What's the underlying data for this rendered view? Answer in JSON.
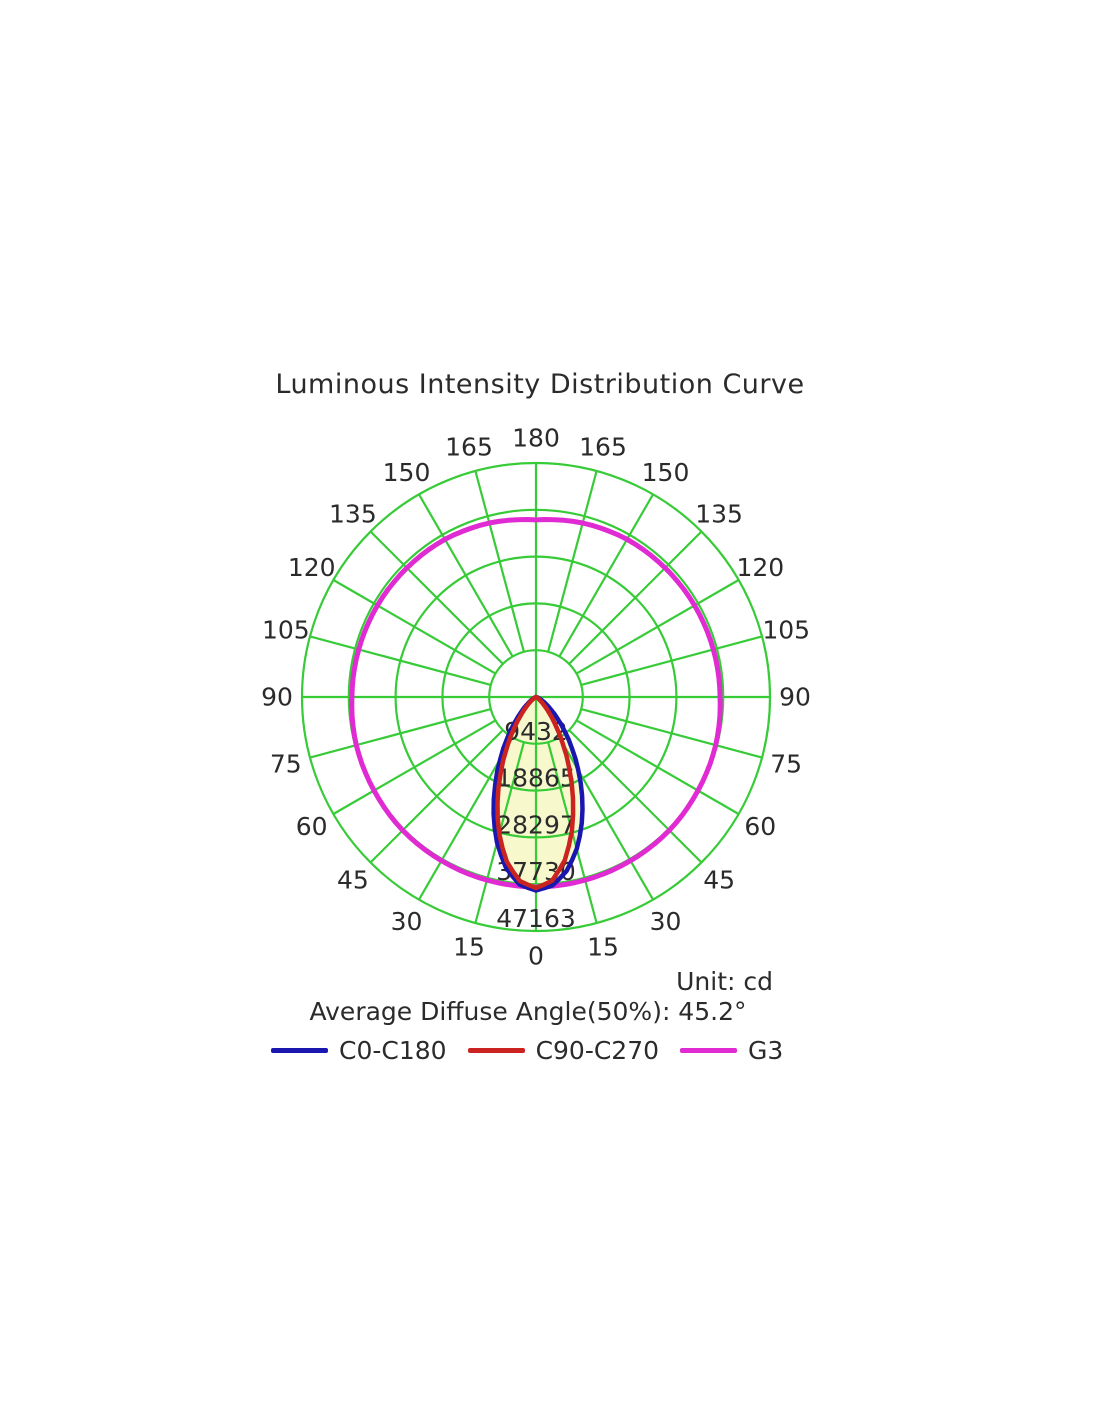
{
  "chart_data": {
    "type": "line",
    "subtype": "polar-photometric",
    "title": "Luminous Intensity Distribution Curve",
    "unit": "cd",
    "unit_label": "Unit: cd",
    "average_diffuse_angle_label": "Average Diffuse Angle(50%): 45.2°",
    "average_diffuse_angle_deg": 45.2,
    "orientation": "0 degrees at bottom, 180 at top, mirrored angle ticks every 15 degrees",
    "angle_ticks_deg": [
      0,
      15,
      30,
      45,
      60,
      75,
      90,
      105,
      120,
      135,
      150,
      165,
      180
    ],
    "radial_ticks_cd": [
      9432,
      18865,
      28297,
      37730,
      47163
    ],
    "radial_max_cd": 47163,
    "grid_on": true,
    "grid_color": "#37cb37",
    "beam_fill_color": "#f7f9cd",
    "text_color": "#2b2b2b",
    "legend_position": "bottom",
    "legend": [
      {
        "label": "C0-C180",
        "color": "#1a17b0"
      },
      {
        "label": "C90-C270",
        "color": "#cb2420"
      },
      {
        "label": "G3",
        "color": "#e02ad2"
      }
    ],
    "series": [
      {
        "name": "C0-C180",
        "color": "#1a17b0",
        "role": "beam",
        "points": [
          [
            -90,
            0
          ],
          [
            -85,
            10
          ],
          [
            -80,
            30
          ],
          [
            -75,
            70
          ],
          [
            -70,
            170
          ],
          [
            -65,
            360
          ],
          [
            -60,
            710
          ],
          [
            -55,
            1350
          ],
          [
            -50,
            2430
          ],
          [
            -45,
            4110
          ],
          [
            -40,
            6590
          ],
          [
            -35,
            10000
          ],
          [
            -30,
            14350
          ],
          [
            -25,
            19480
          ],
          [
            -20,
            25010
          ],
          [
            -15,
            30370
          ],
          [
            -10,
            34900
          ],
          [
            -5,
            37930
          ],
          [
            0,
            39000
          ],
          [
            5,
            38110
          ],
          [
            10,
            35580
          ],
          [
            15,
            31720
          ],
          [
            20,
            27010
          ],
          [
            25,
            21970
          ],
          [
            30,
            17070
          ],
          [
            35,
            12660
          ],
          [
            40,
            8970
          ],
          [
            45,
            6080
          ],
          [
            50,
            3930
          ],
          [
            55,
            2430
          ],
          [
            60,
            1430
          ],
          [
            65,
            810
          ],
          [
            70,
            430
          ],
          [
            75,
            220
          ],
          [
            80,
            110
          ],
          [
            85,
            50
          ],
          [
            90,
            0
          ]
        ]
      },
      {
        "name": "C90-C270",
        "color": "#cb2420",
        "role": "beam",
        "points": [
          [
            -90,
            0
          ],
          [
            -85,
            5
          ],
          [
            -80,
            15
          ],
          [
            -75,
            30
          ],
          [
            -70,
            60
          ],
          [
            -65,
            150
          ],
          [
            -60,
            330
          ],
          [
            -55,
            700
          ],
          [
            -50,
            1410
          ],
          [
            -45,
            2640
          ],
          [
            -40,
            4640
          ],
          [
            -35,
            7620
          ],
          [
            -30,
            11710
          ],
          [
            -25,
            16850
          ],
          [
            -20,
            22690
          ],
          [
            -15,
            28590
          ],
          [
            -10,
            33730
          ],
          [
            -5,
            37250
          ],
          [
            0,
            38500
          ],
          [
            5,
            37150
          ],
          [
            10,
            33390
          ],
          [
            15,
            27950
          ],
          [
            20,
            21780
          ],
          [
            25,
            15810
          ],
          [
            30,
            10690
          ],
          [
            35,
            6730
          ],
          [
            40,
            3940
          ],
          [
            45,
            2150
          ],
          [
            50,
            1090
          ],
          [
            55,
            520
          ],
          [
            60,
            230
          ],
          [
            65,
            90
          ],
          [
            70,
            40
          ],
          [
            75,
            10
          ],
          [
            80,
            5
          ],
          [
            85,
            0
          ],
          [
            90,
            0
          ]
        ]
      },
      {
        "name": "G3",
        "color": "#e02ad2",
        "role": "reference",
        "points": [
          [
            -180,
            35700
          ],
          [
            -165,
            36300
          ],
          [
            -150,
            36700
          ],
          [
            -135,
            36800
          ],
          [
            -120,
            36900
          ],
          [
            -105,
            37000
          ],
          [
            -90,
            37100
          ],
          [
            -75,
            37500
          ],
          [
            -60,
            37700
          ],
          [
            -45,
            38000
          ],
          [
            -30,
            38100
          ],
          [
            -15,
            38200
          ],
          [
            0,
            38300
          ],
          [
            15,
            38200
          ],
          [
            30,
            38100
          ],
          [
            45,
            38000
          ],
          [
            60,
            37700
          ],
          [
            75,
            37500
          ],
          [
            90,
            37100
          ],
          [
            105,
            37000
          ],
          [
            120,
            36900
          ],
          [
            135,
            36800
          ],
          [
            150,
            36700
          ],
          [
            165,
            36300
          ],
          [
            180,
            35700
          ]
        ]
      }
    ]
  }
}
